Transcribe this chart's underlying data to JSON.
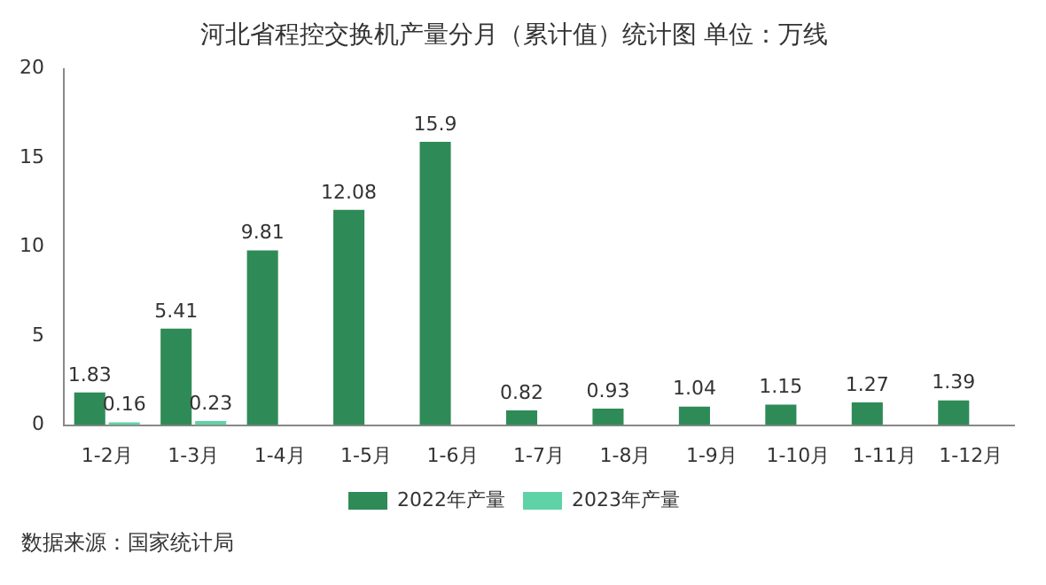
{
  "chart_data": {
    "type": "bar",
    "title": "河北省程控交换机产量分月（累计值）统计图 单位：万线",
    "categories": [
      "1-2月",
      "1-3月",
      "1-4月",
      "1-5月",
      "1-6月",
      "1-7月",
      "1-8月",
      "1-9月",
      "1-10月",
      "1-11月",
      "1-12月"
    ],
    "series": [
      {
        "name": "2022年产量",
        "color": "#2e8b57",
        "values": [
          1.83,
          5.41,
          9.81,
          12.08,
          15.9,
          0.82,
          0.93,
          1.04,
          1.15,
          1.27,
          1.39
        ]
      },
      {
        "name": "2023年产量",
        "color": "#5fd3a6",
        "values": [
          0.16,
          0.23,
          null,
          null,
          null,
          null,
          null,
          null,
          null,
          null,
          null
        ]
      }
    ],
    "ylim": [
      0,
      20
    ],
    "yticks": [
      0,
      5,
      10,
      15,
      20
    ],
    "grid": false,
    "legend": "bottom",
    "data_labels": true,
    "annotations": [
      "数据来源：国家统计局"
    ]
  }
}
